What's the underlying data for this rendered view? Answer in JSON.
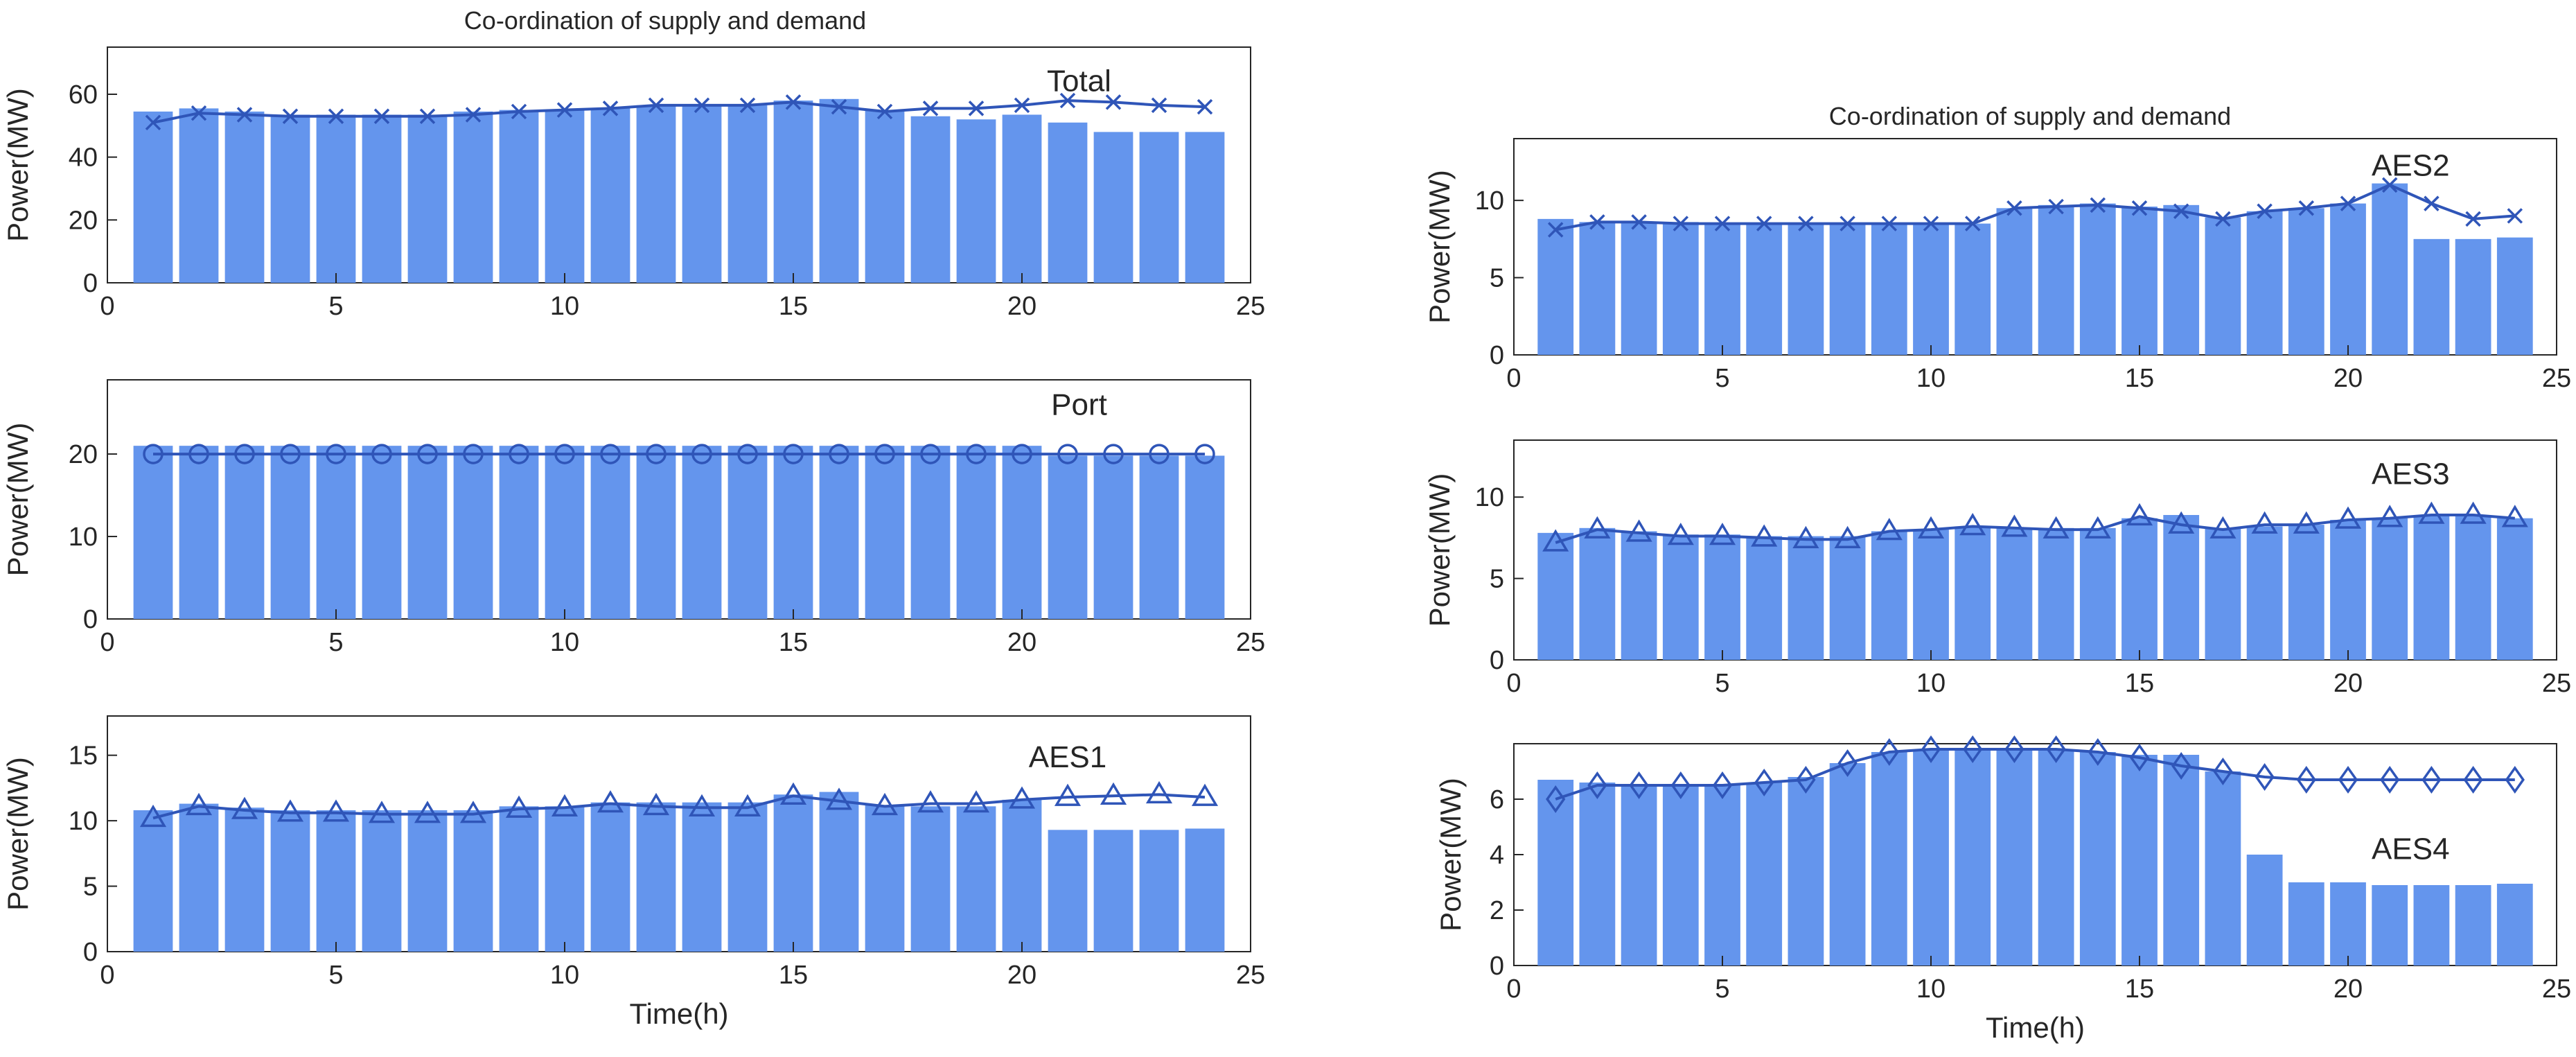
{
  "figure": {
    "left_title": "Co-ordination of supply and demand",
    "right_title": "Co-ordination of supply and demand",
    "bar_color": "#6495ED",
    "line_color": "#2F55B8",
    "axis_color": "#262626"
  },
  "chart_data": [
    {
      "id": "total",
      "type": "bar",
      "overlay": "line",
      "marker": "x",
      "label": "Total",
      "xlabel": "",
      "ylabel": "Power(MW)",
      "xlim": [
        0,
        25
      ],
      "ylim": [
        0,
        75
      ],
      "xticks": [
        0,
        5,
        10,
        15,
        20,
        25
      ],
      "yticks": [
        0,
        20,
        40,
        60
      ],
      "categories": [
        1,
        2,
        3,
        4,
        5,
        6,
        7,
        8,
        9,
        10,
        11,
        12,
        13,
        14,
        15,
        16,
        17,
        18,
        19,
        20,
        21,
        22,
        23,
        24
      ],
      "bar_values": [
        54.5,
        55.5,
        54.5,
        53.5,
        53.5,
        53.5,
        53.5,
        54.5,
        55,
        55,
        55.5,
        56.5,
        56.5,
        56.5,
        58,
        58.5,
        55,
        53,
        52,
        53.5,
        51,
        48,
        48,
        48
      ],
      "line_values": [
        51,
        54,
        53.5,
        53,
        53,
        53,
        53,
        53.5,
        54.5,
        55,
        55.5,
        56.5,
        56.5,
        56.5,
        57.5,
        56,
        54.5,
        55.5,
        55.5,
        56.5,
        58,
        57.5,
        56.5,
        56
      ]
    },
    {
      "id": "port",
      "type": "bar",
      "overlay": "line",
      "marker": "circle",
      "label": "Port",
      "xlabel": "",
      "ylabel": "Power(MW)",
      "xlim": [
        0,
        25
      ],
      "ylim": [
        0,
        29
      ],
      "xticks": [
        0,
        5,
        10,
        15,
        20,
        25
      ],
      "yticks": [
        0,
        10,
        20
      ],
      "categories": [
        1,
        2,
        3,
        4,
        5,
        6,
        7,
        8,
        9,
        10,
        11,
        12,
        13,
        14,
        15,
        16,
        17,
        18,
        19,
        20,
        21,
        22,
        23,
        24
      ],
      "bar_values": [
        21,
        21,
        21,
        21,
        21,
        21,
        21,
        21,
        21,
        21,
        21,
        21,
        21,
        21,
        21,
        21,
        21,
        21,
        21,
        21,
        19.8,
        19.8,
        19.8,
        19.8
      ],
      "line_values": [
        20,
        20,
        20,
        20,
        20,
        20,
        20,
        20,
        20,
        20,
        20,
        20,
        20,
        20,
        20,
        20,
        20,
        20,
        20,
        20,
        20,
        20,
        20,
        20
      ]
    },
    {
      "id": "aes1",
      "type": "bar",
      "overlay": "line",
      "marker": "triangle",
      "label": "AES1",
      "xlabel": "Time(h)",
      "ylabel": "Power(MW)",
      "xlim": [
        0,
        25
      ],
      "ylim": [
        0,
        18
      ],
      "xticks": [
        0,
        5,
        10,
        15,
        20,
        25
      ],
      "yticks": [
        0,
        5,
        10,
        15
      ],
      "categories": [
        1,
        2,
        3,
        4,
        5,
        6,
        7,
        8,
        9,
        10,
        11,
        12,
        13,
        14,
        15,
        16,
        17,
        18,
        19,
        20,
        21,
        22,
        23,
        24
      ],
      "bar_values": [
        10.8,
        11.3,
        11,
        10.8,
        10.8,
        10.8,
        10.8,
        10.8,
        11.1,
        11.1,
        11.4,
        11.4,
        11.4,
        11.4,
        12,
        12.2,
        11.2,
        11.1,
        11.1,
        11.6,
        9.3,
        9.3,
        9.3,
        9.4
      ],
      "line_values": [
        10.2,
        11.1,
        10.8,
        10.6,
        10.6,
        10.5,
        10.5,
        10.5,
        10.9,
        11,
        11.3,
        11.1,
        11,
        11,
        11.9,
        11.5,
        11.1,
        11.3,
        11.3,
        11.6,
        11.8,
        11.9,
        12,
        11.8
      ]
    },
    {
      "id": "aes2",
      "type": "bar",
      "overlay": "line",
      "marker": "x",
      "label": "AES2",
      "xlabel": "",
      "ylabel": "Power(MW)",
      "xlim": [
        0,
        25
      ],
      "ylim": [
        0,
        14
      ],
      "xticks": [
        0,
        5,
        10,
        15,
        20,
        25
      ],
      "yticks": [
        0,
        5,
        10
      ],
      "categories": [
        1,
        2,
        3,
        4,
        5,
        6,
        7,
        8,
        9,
        10,
        11,
        12,
        13,
        14,
        15,
        16,
        17,
        18,
        19,
        20,
        21,
        22,
        23,
        24
      ],
      "bar_values": [
        8.8,
        8.6,
        8.6,
        8.6,
        8.5,
        8.5,
        8.5,
        8.5,
        8.5,
        8.5,
        8.5,
        9.5,
        9.7,
        9.8,
        9.6,
        9.7,
        8.9,
        9.3,
        9.5,
        9.8,
        11.1,
        7.5,
        7.5,
        7.6
      ],
      "line_values": [
        8.1,
        8.6,
        8.6,
        8.5,
        8.5,
        8.5,
        8.5,
        8.5,
        8.5,
        8.5,
        8.5,
        9.5,
        9.6,
        9.7,
        9.5,
        9.3,
        8.8,
        9.3,
        9.5,
        9.8,
        11,
        9.8,
        8.8,
        9
      ]
    },
    {
      "id": "aes3",
      "type": "bar",
      "overlay": "line",
      "marker": "triangle",
      "label": "AES3",
      "xlabel": "",
      "ylabel": "Power(MW)",
      "xlim": [
        0,
        25
      ],
      "ylim": [
        0,
        13.5
      ],
      "xticks": [
        0,
        5,
        10,
        15,
        20,
        25
      ],
      "yticks": [
        0,
        5,
        10
      ],
      "categories": [
        1,
        2,
        3,
        4,
        5,
        6,
        7,
        8,
        9,
        10,
        11,
        12,
        13,
        14,
        15,
        16,
        17,
        18,
        19,
        20,
        21,
        22,
        23,
        24
      ],
      "bar_values": [
        7.8,
        8.1,
        7.9,
        7.7,
        7.7,
        7.6,
        7.6,
        7.6,
        7.9,
        8,
        8.2,
        8.1,
        8.1,
        8.1,
        8.7,
        8.9,
        8.1,
        8.2,
        8.3,
        8.6,
        8.7,
        8.9,
        8.9,
        8.7
      ],
      "line_values": [
        7.2,
        8,
        7.8,
        7.6,
        7.6,
        7.5,
        7.4,
        7.4,
        7.9,
        8,
        8.2,
        8.1,
        8,
        8,
        8.8,
        8.3,
        8,
        8.3,
        8.3,
        8.6,
        8.7,
        8.9,
        8.9,
        8.7
      ]
    },
    {
      "id": "aes4",
      "type": "bar",
      "overlay": "line",
      "marker": "diamond",
      "label": "AES4",
      "xlabel": "Time(h)",
      "ylabel": "Power(MW)",
      "xlim": [
        0,
        25
      ],
      "ylim": [
        0,
        8
      ],
      "xticks": [
        0,
        5,
        10,
        15,
        20,
        25
      ],
      "yticks": [
        0,
        2,
        4,
        6
      ],
      "categories": [
        1,
        2,
        3,
        4,
        5,
        6,
        7,
        8,
        9,
        10,
        11,
        12,
        13,
        14,
        15,
        16,
        17,
        18,
        19,
        20,
        21,
        22,
        23,
        24
      ],
      "bar_values": [
        6.7,
        6.6,
        6.5,
        6.5,
        6.5,
        6.6,
        6.8,
        7.3,
        7.7,
        7.8,
        7.8,
        7.8,
        7.8,
        7.7,
        7.6,
        7.6,
        7,
        4,
        3,
        3,
        2.9,
        2.9,
        2.9,
        2.95
      ],
      "line_values": [
        6,
        6.5,
        6.5,
        6.5,
        6.5,
        6.6,
        6.7,
        7.3,
        7.7,
        7.8,
        7.8,
        7.8,
        7.8,
        7.7,
        7.5,
        7.2,
        7,
        6.8,
        6.7,
        6.7,
        6.7,
        6.7,
        6.7,
        6.7
      ]
    }
  ]
}
